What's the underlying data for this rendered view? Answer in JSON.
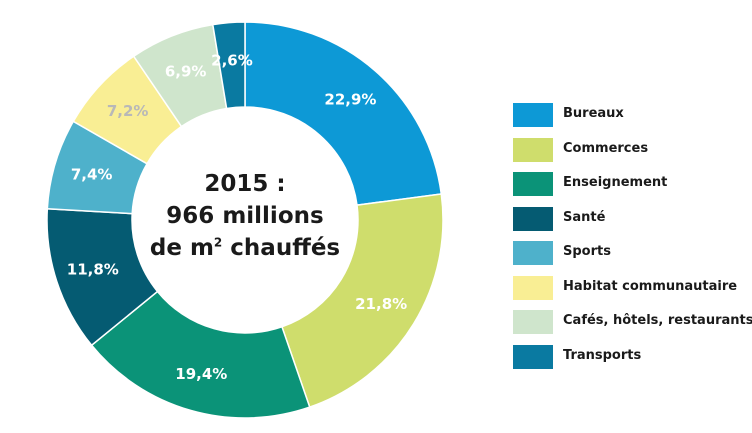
{
  "center": {
    "line1": "2015 :",
    "line2": "966 millions",
    "line3_pre": "de m",
    "line3_sup": "2",
    "line3_post": " chauffés"
  },
  "chart_data": {
    "type": "pie",
    "categories": [
      "Bureaux",
      "Commerces",
      "Enseignement",
      "Santé",
      "Sports",
      "Habitat communautaire",
      "Cafés, hôtels, restaurants",
      "Transports"
    ],
    "values": [
      22.9,
      21.8,
      19.4,
      11.8,
      7.4,
      7.2,
      6.9,
      2.6
    ],
    "labels": [
      "22,9%",
      "21,8%",
      "19,4%",
      "11,8%",
      "7,4%",
      "7,2%",
      "6,9%",
      "2,6%"
    ],
    "colors": [
      "#0d99d6",
      "#cfdd6c",
      "#0b9378",
      "#055b72",
      "#4eb1cb",
      "#f9ee94",
      "#cfe5cc",
      "#0a7aa1"
    ],
    "label_colors": [
      "#ffffff",
      "#ffffff",
      "#ffffff",
      "#ffffff",
      "#ffffff",
      "#b8b8b8",
      "#ffffff",
      "#ffffff"
    ],
    "unit": "%",
    "legend_position": "right"
  }
}
